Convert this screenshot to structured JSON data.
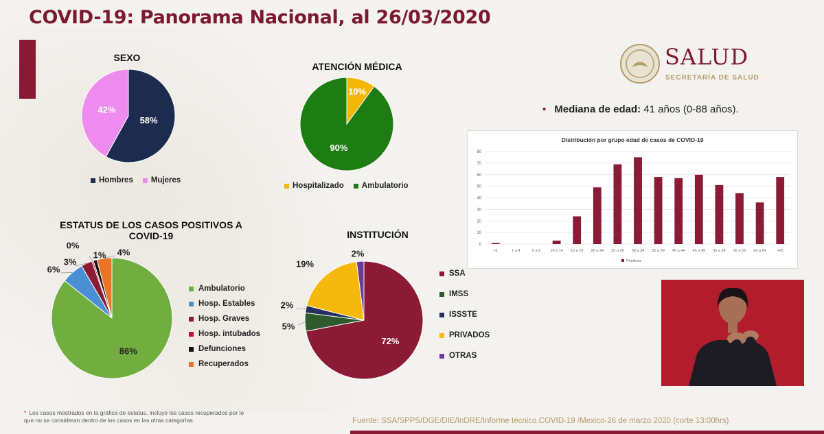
{
  "title": "COVID-19: Panorama Nacional, al 26/03/2020",
  "logo": {
    "name": "SALUD",
    "subtitle": "SECRETARÍA DE SALUD"
  },
  "mediana": {
    "bold": "Mediana de edad:",
    "text": " 41 años (0-88 años)."
  },
  "footnote": "Los casos mostrados en la gráfica de estatus, incluye los casos recuperados por lo que no se consideran dentro de los casos en las otras categorías",
  "source": "Fuente: SSA/SPPS/DGE/DIE/InDRE/Informe técnico.COVID-19 /Mexico-26 de marzo 2020 (corte 13:00hrs)",
  "colors": {
    "brand": "#7b1930",
    "gold": "#b39a6a"
  },
  "chart_data": [
    {
      "id": "sexo",
      "type": "pie",
      "title": "SEXO",
      "legend_position": "bottom",
      "slices": [
        {
          "label": "Hombres",
          "value": 58,
          "text": "58%",
          "color": "#1c2b4e"
        },
        {
          "label": "Mujeres",
          "value": 42,
          "text": "42%",
          "color": "#ee8bee"
        }
      ]
    },
    {
      "id": "atencion",
      "type": "pie",
      "title": "ATENCIÓN MÉDICA",
      "legend_position": "bottom",
      "slices": [
        {
          "label": "Hospitalizado",
          "value": 10,
          "text": "10%",
          "color": "#f2b705"
        },
        {
          "label": "Ambulatorio",
          "value": 90,
          "text": "90%",
          "color": "#1e7d12"
        }
      ]
    },
    {
      "id": "estatus",
      "type": "pie",
      "title_lines": [
        "ESTATUS DE LOS CASOS POSITIVOS A",
        "COVID-19"
      ],
      "legend_position": "right",
      "slices": [
        {
          "label": "Ambulatorio",
          "value": 86,
          "text": "86%",
          "color": "#72ad3f"
        },
        {
          "label": "Hosp. Estables",
          "value": 6,
          "text": "6%",
          "color": "#4a8fd4"
        },
        {
          "label": "Hosp. Graves",
          "value": 3,
          "text": "3%",
          "color": "#8b1a35"
        },
        {
          "label": "Hosp. intubados",
          "value": 0.4,
          "text": "0%",
          "color": "#c0102a"
        },
        {
          "label": "Defunciones",
          "value": 1,
          "text": "1%",
          "color": "#111111"
        },
        {
          "label": "Recuperados",
          "value": 4,
          "text": "4%",
          "color": "#ec7426"
        }
      ]
    },
    {
      "id": "institucion",
      "type": "pie",
      "title": "INSTITUCIÓN",
      "legend_position": "right",
      "slices": [
        {
          "label": "SSA",
          "value": 72,
          "text": "72%",
          "color": "#8b1a35"
        },
        {
          "label": "IMSS",
          "value": 5,
          "text": "5%",
          "color": "#2e5b2b"
        },
        {
          "label": "ISSSTE",
          "value": 2,
          "text": "2%",
          "color": "#25305e"
        },
        {
          "label": "PRIVADOS",
          "value": 19,
          "text": "19%",
          "color": "#f4b90c"
        },
        {
          "label": "OTRAS",
          "value": 2,
          "text": "2%",
          "color": "#6a3d9a"
        }
      ]
    },
    {
      "id": "edad",
      "type": "bar",
      "title": "Distribución por grupo edad de casos de COVID-19",
      "categories": [
        "<1",
        "1 a 4",
        "5 a 9",
        "10 a 14",
        "15 a 19",
        "20 a 24",
        "25 a 29",
        "30 a 34",
        "35 a 39",
        "40 a 44",
        "45 a 49",
        "50 a 54",
        "55 a 59",
        "60 a 64",
        "+65"
      ],
      "series": [
        {
          "name": "Positivos",
          "values": [
            1,
            0,
            0,
            3,
            24,
            49,
            69,
            75,
            58,
            57,
            60,
            51,
            44,
            36,
            58
          ],
          "color": "#8b1a35"
        }
      ],
      "yticks": [
        0,
        10,
        20,
        30,
        40,
        50,
        60,
        70,
        80
      ],
      "ylim": [
        0,
        80
      ],
      "grid": true,
      "legend_position": "bottom"
    }
  ]
}
